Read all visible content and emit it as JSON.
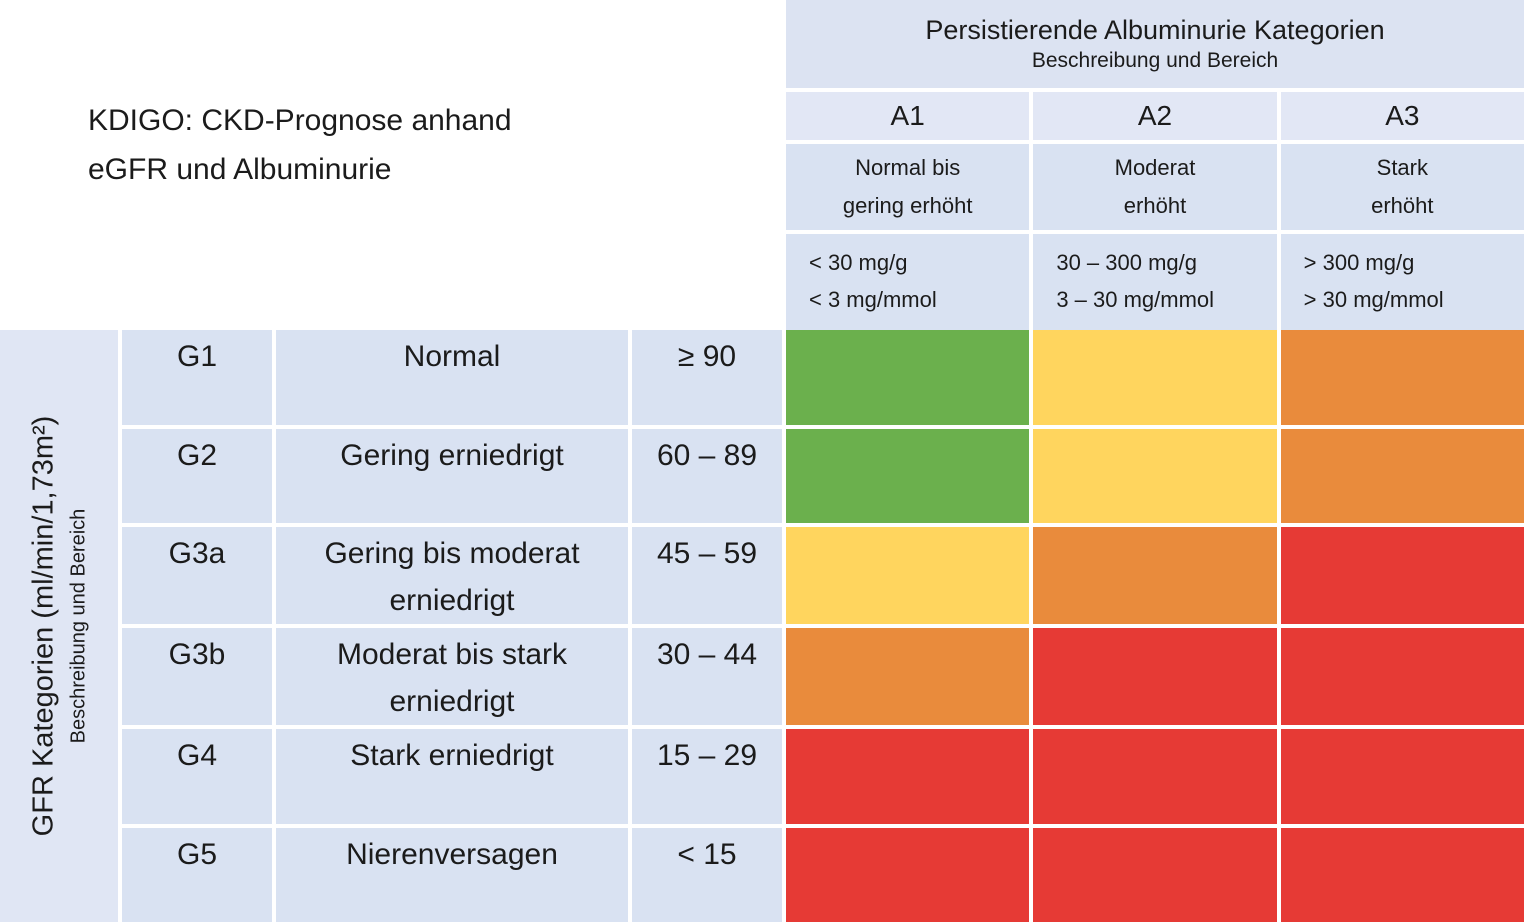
{
  "title": {
    "line1": "KDIGO: CKD-Prognose anhand",
    "line2": "eGFR und Albuminurie"
  },
  "albuminuria": {
    "title": "Persistierende Albuminurie Kategorien",
    "subtitle": "Beschreibung und Bereich",
    "categories": [
      {
        "code": "A1",
        "desc_line1": "Normal bis",
        "desc_line2": "gering erhöht",
        "range_mg_g": "< 30 mg/g",
        "range_mg_mmol": "< 3 mg/mmol"
      },
      {
        "code": "A2",
        "desc_line1": "Moderat",
        "desc_line2": "erhöht",
        "range_mg_g": "30 – 300 mg/g",
        "range_mg_mmol": "3 – 30 mg/mmol"
      },
      {
        "code": "A3",
        "desc_line1": "Stark",
        "desc_line2": "erhöht",
        "range_mg_g": "> 300 mg/g",
        "range_mg_mmol": "> 30 mg/mmol"
      }
    ]
  },
  "gfr_axis": {
    "label": "GFR Kategorien (ml/min/1,73m²)",
    "sublabel": "Beschreibung und Bereich"
  },
  "gfr_rows": [
    {
      "code": "G1",
      "description": "Normal",
      "range": "≥ 90"
    },
    {
      "code": "G2",
      "description": "Gering erniedrigt",
      "range": "60 – 89"
    },
    {
      "code": "G3a",
      "description": "Gering bis moderat erniedrigt",
      "range": "45 – 59"
    },
    {
      "code": "G3b",
      "description": "Moderat bis stark erniedrigt",
      "range": "30 – 44"
    },
    {
      "code": "G4",
      "description": "Stark erniedrigt",
      "range": "15 – 29"
    },
    {
      "code": "G5",
      "description": "Nierenversagen",
      "range": "< 15"
    }
  ],
  "colors": {
    "green": "#6bb04d",
    "yellow": "#ffd55e",
    "orange": "#e98b3c",
    "red": "#e63a35",
    "cell_background": "#d9e2f2",
    "header_background": "#dce3f2"
  },
  "chart_data": {
    "type": "heatmap",
    "title": "KDIGO: CKD-Prognose anhand eGFR und Albuminurie",
    "x_axis_label": "Persistierende Albuminurie Kategorien — Beschreibung und Bereich",
    "y_axis_label": "GFR Kategorien (ml/min/1,73m²) — Beschreibung und Bereich",
    "x_categories": [
      "A1",
      "A2",
      "A3"
    ],
    "x_category_descriptions": [
      "Normal bis gering erhöht",
      "Moderat erhöht",
      "Stark erhöht"
    ],
    "x_category_ranges": [
      "< 30 mg/g, < 3 mg/mmol",
      "30 – 300 mg/g, 3 – 30 mg/mmol",
      "> 300 mg/g, > 30 mg/mmol"
    ],
    "y_categories": [
      "G1",
      "G2",
      "G3a",
      "G3b",
      "G4",
      "G5"
    ],
    "y_category_descriptions": [
      "Normal",
      "Gering erniedrigt",
      "Gering bis moderat erniedrigt",
      "Moderat bis stark erniedrigt",
      "Stark erniedrigt",
      "Nierenversagen"
    ],
    "y_category_ranges": [
      "≥ 90",
      "60 – 89",
      "45 – 59",
      "30 – 44",
      "15 – 29",
      "< 15"
    ],
    "cell_colors": [
      [
        "green",
        "yellow",
        "orange"
      ],
      [
        "green",
        "yellow",
        "orange"
      ],
      [
        "yellow",
        "orange",
        "red"
      ],
      [
        "orange",
        "red",
        "red"
      ],
      [
        "red",
        "red",
        "red"
      ],
      [
        "red",
        "red",
        "red"
      ]
    ]
  }
}
